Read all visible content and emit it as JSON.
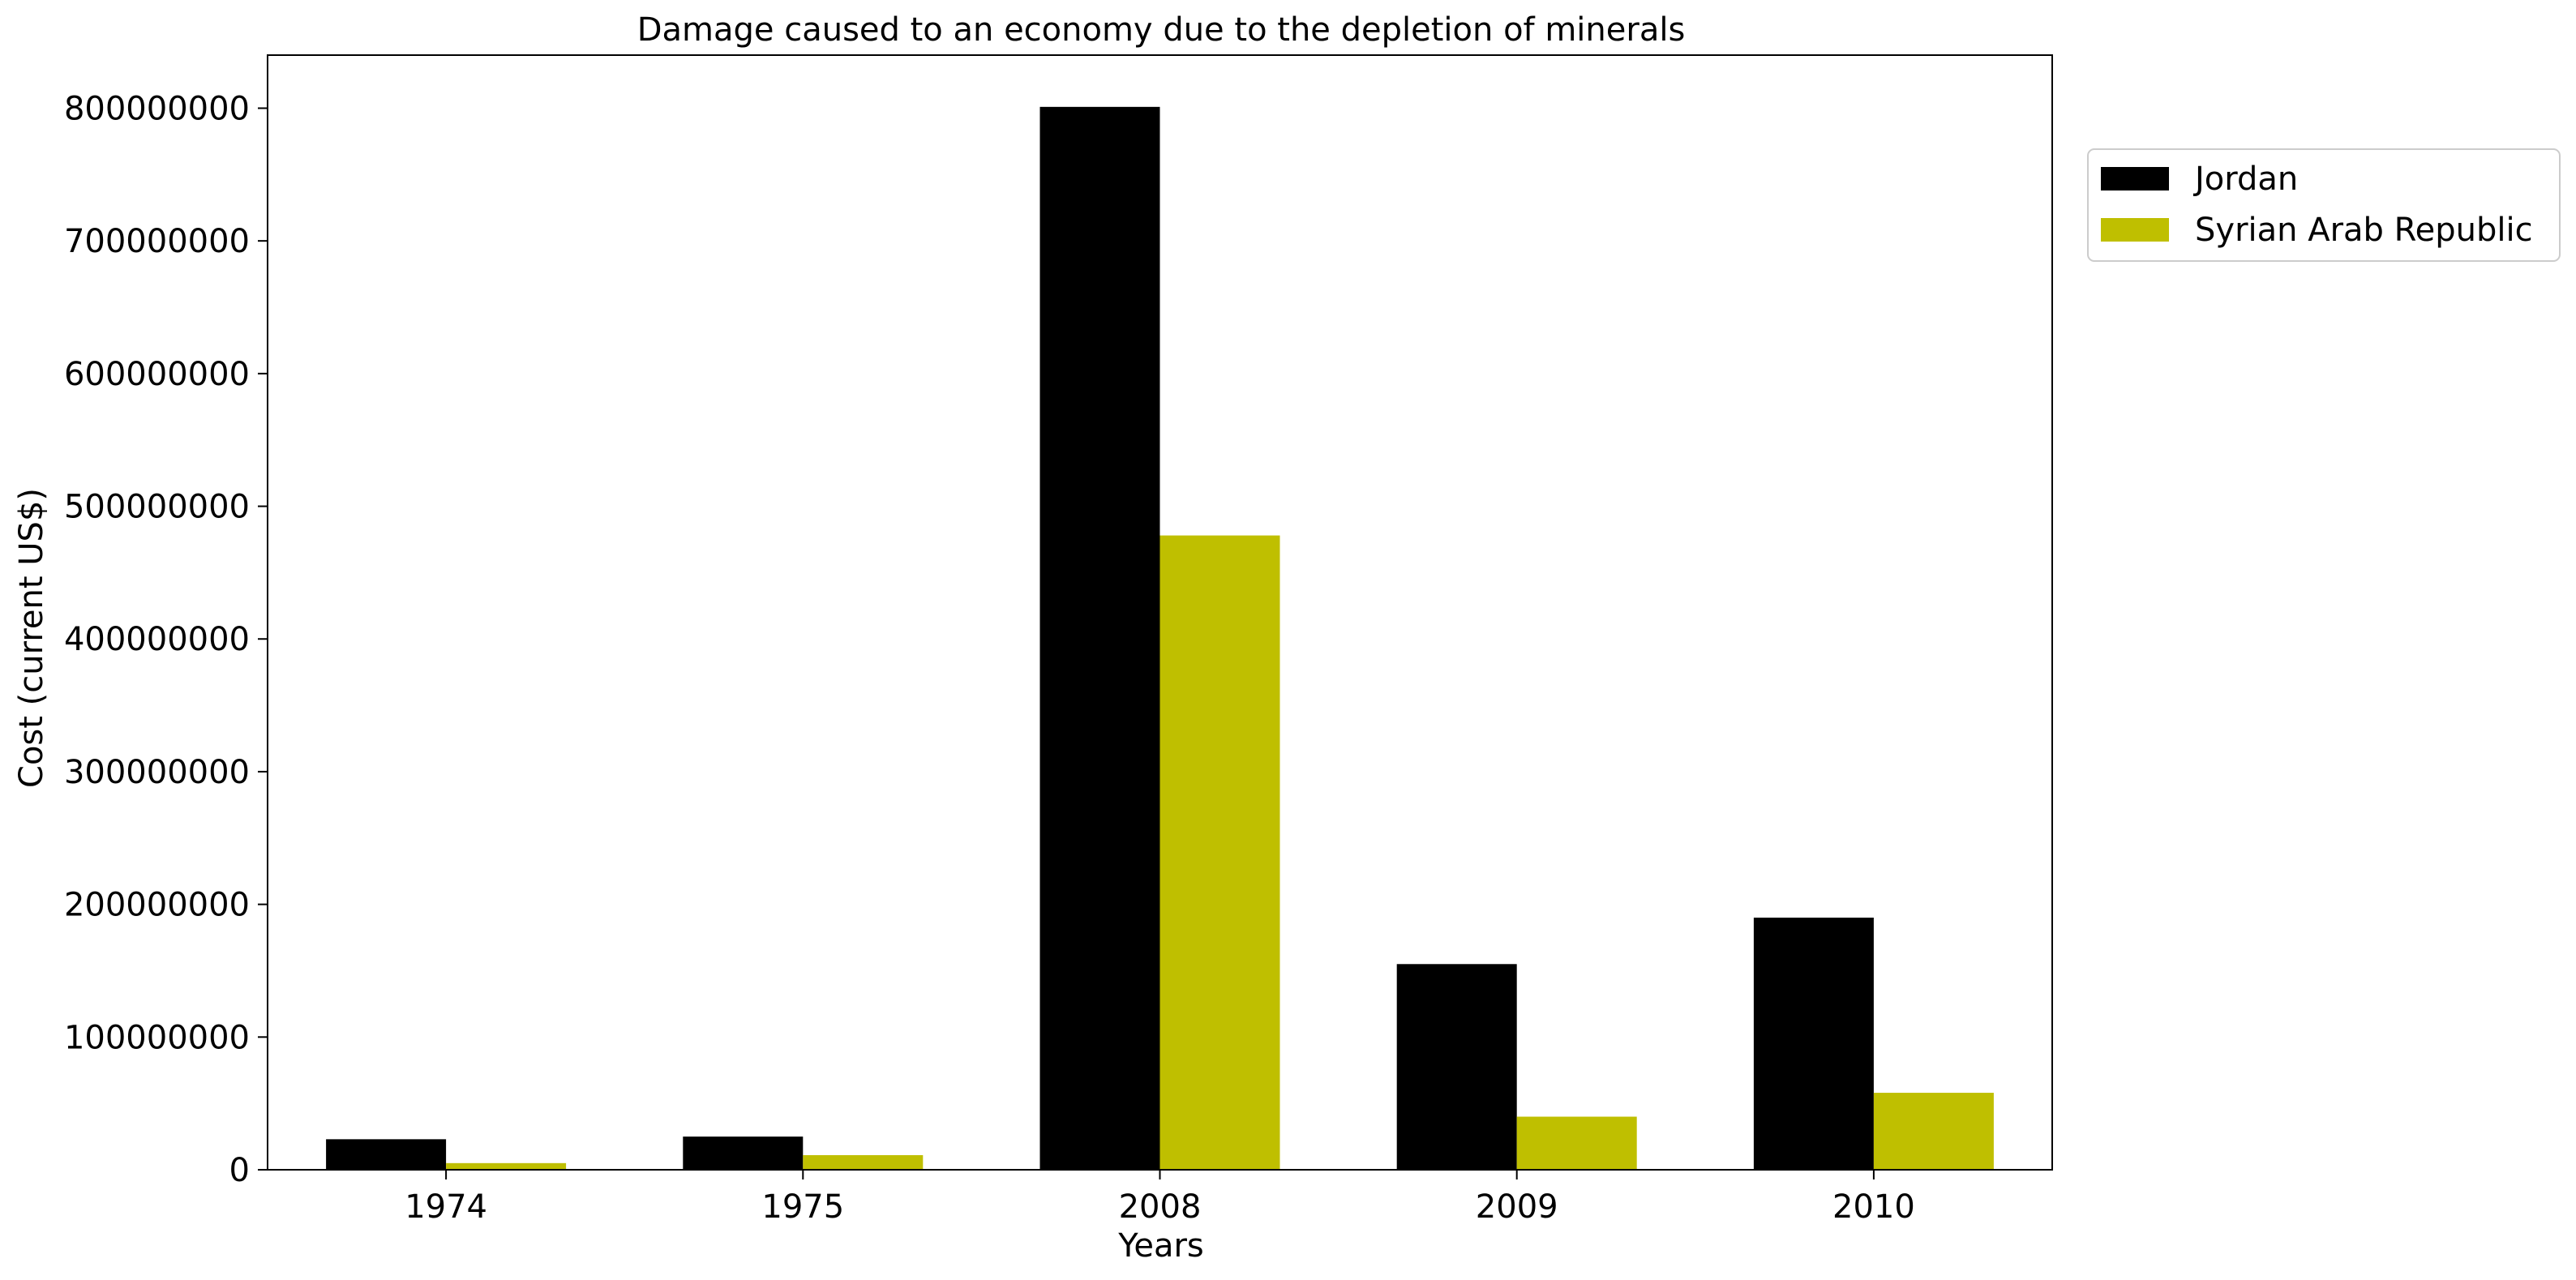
{
  "chart_data": {
    "type": "bar",
    "title": "Damage caused to an economy due to the depletion of minerals",
    "xlabel": "Years",
    "ylabel": "Cost (current US$)",
    "categories": [
      "1974",
      "1975",
      "2008",
      "2009",
      "2010"
    ],
    "series": [
      {
        "name": "Jordan",
        "color": "#000000",
        "values": [
          23000000,
          25000000,
          801000000,
          155000000,
          190000000
        ]
      },
      {
        "name": "Syrian Arab Republic",
        "color": "#bfbf00",
        "values": [
          5000000,
          11000000,
          478000000,
          40000000,
          58000000
        ]
      }
    ],
    "ylim": [
      0,
      840000000
    ],
    "yticks": [
      "0",
      "100000000",
      "200000000",
      "300000000",
      "400000000",
      "500000000",
      "600000000",
      "700000000",
      "800000000"
    ],
    "grid": false,
    "legend_position": "outside-top-right"
  }
}
